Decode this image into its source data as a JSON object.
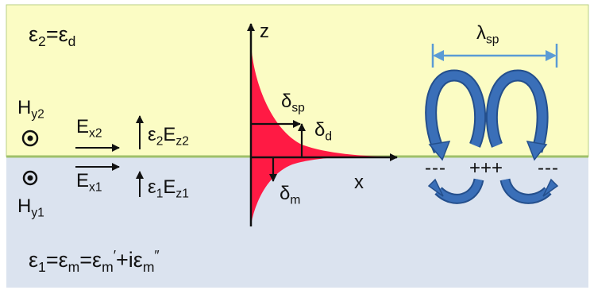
{
  "dielectric": {
    "eps_symbol": "ε",
    "eps_sub": "2",
    "equals": "=",
    "eps_val": "ε",
    "eps_val_sub": "d"
  },
  "metal": {
    "eps_symbol": "ε",
    "eps_sub": "1",
    "eq1": "=",
    "eps_m": "ε",
    "eps_m_sub": "m",
    "eq2": "=",
    "eps_re": "ε",
    "eps_re_sub": "m",
    "eps_re_sup": "′",
    "plus_i": "+i",
    "eps_im": "ε",
    "eps_im_sub": "m",
    "eps_im_sup": "″"
  },
  "fields": {
    "hy2": {
      "main": "H",
      "sub": "y2"
    },
    "hy1": {
      "main": "H",
      "sub": "y1"
    },
    "ex2": {
      "main": "E",
      "sub": "x2"
    },
    "ex1": {
      "main": "E",
      "sub": "x1"
    },
    "ez2": {
      "eps": "ε",
      "eps_sub": "2",
      "main": "E",
      "sub": "z2"
    },
    "ez1": {
      "eps": "ε",
      "eps_sub": "1",
      "main": "E",
      "sub": "z1"
    },
    "dot_symbol": "⊙"
  },
  "profile": {
    "axis_z": "z",
    "axis_x": "x",
    "delta_sp": {
      "main": "δ",
      "sub": "sp"
    },
    "delta_d": {
      "main": "δ",
      "sub": "d"
    },
    "delta_m": {
      "main": "δ",
      "sub": "m"
    }
  },
  "wave": {
    "lambda": {
      "main": "λ",
      "sub": "sp"
    },
    "charges": [
      "---",
      "+++",
      "---"
    ]
  },
  "colors": {
    "dielectric_bg": "#fbfcc4",
    "metal_bg": "#dbe3ef",
    "interface": "#9fc06a",
    "profile_fill": "#ff1a44",
    "arrow_blue": "#3a6fb8",
    "arrow_blue_dark": "#244f8c",
    "lambda_arrow": "#5b9bd5"
  }
}
